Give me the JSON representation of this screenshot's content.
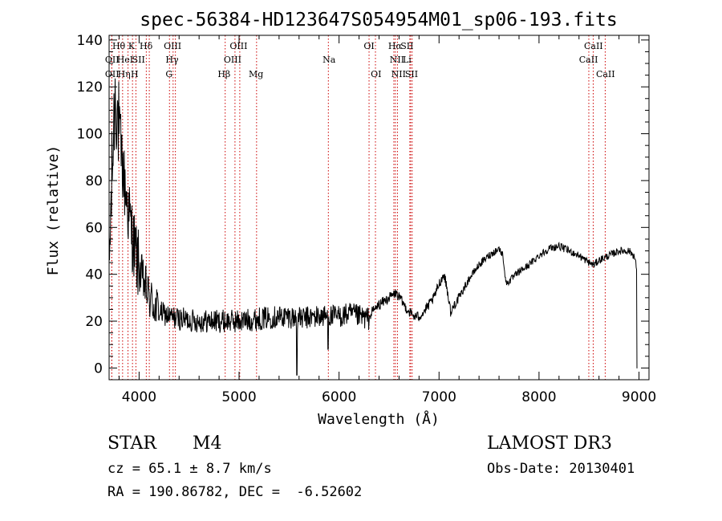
{
  "chart_data": {
    "type": "line",
    "title": "spec-56384-HD123647S054954M01_sp06-193.fits",
    "xlabel": "Wavelength (Å)",
    "ylabel": "Flux (relative)",
    "xlim": [
      3700,
      9100
    ],
    "ylim": [
      -5,
      142
    ],
    "xticks": [
      4000,
      5000,
      6000,
      7000,
      8000,
      9000
    ],
    "yticks": [
      0,
      20,
      40,
      60,
      80,
      100,
      120,
      140
    ],
    "grid": false,
    "line_color": "#000000",
    "marker_color": "#cc0000",
    "continuum": [
      [
        3700,
        40
      ],
      [
        3720,
        70
      ],
      [
        3740,
        95
      ],
      [
        3760,
        118
      ],
      [
        3780,
        110
      ],
      [
        3800,
        100
      ],
      [
        3850,
        80
      ],
      [
        3900,
        65
      ],
      [
        3950,
        52
      ],
      [
        4000,
        42
      ],
      [
        4050,
        36
      ],
      [
        4100,
        30
      ],
      [
        4150,
        27
      ],
      [
        4200,
        24
      ],
      [
        4300,
        22
      ],
      [
        4400,
        21
      ],
      [
        4600,
        20
      ],
      [
        4800,
        20
      ],
      [
        5000,
        20
      ],
      [
        5200,
        21
      ],
      [
        5400,
        22
      ],
      [
        5500,
        22
      ],
      [
        5600,
        21
      ],
      [
        5800,
        22
      ],
      [
        5900,
        22
      ],
      [
        6000,
        22
      ],
      [
        6100,
        23
      ],
      [
        6200,
        22
      ],
      [
        6300,
        21
      ],
      [
        6330,
        24
      ],
      [
        6400,
        27
      ],
      [
        6500,
        30
      ],
      [
        6570,
        32
      ],
      [
        6620,
        29
      ],
      [
        6680,
        25
      ],
      [
        6750,
        22
      ],
      [
        6800,
        22
      ],
      [
        6850,
        24
      ],
      [
        6900,
        27
      ],
      [
        6950,
        30
      ],
      [
        7000,
        36
      ],
      [
        7050,
        40
      ],
      [
        7080,
        34
      ],
      [
        7120,
        23
      ],
      [
        7150,
        27
      ],
      [
        7200,
        30
      ],
      [
        7300,
        38
      ],
      [
        7400,
        44
      ],
      [
        7500,
        48
      ],
      [
        7600,
        51
      ],
      [
        7640,
        48
      ],
      [
        7670,
        36
      ],
      [
        7700,
        37
      ],
      [
        7800,
        41
      ],
      [
        7900,
        44
      ],
      [
        8000,
        48
      ],
      [
        8100,
        51
      ],
      [
        8200,
        52
      ],
      [
        8300,
        50
      ],
      [
        8400,
        48
      ],
      [
        8500,
        45
      ],
      [
        8550,
        44
      ],
      [
        8600,
        46
      ],
      [
        8700,
        48
      ],
      [
        8800,
        50
      ],
      [
        8900,
        50
      ],
      [
        8950,
        48
      ],
      [
        8980,
        42
      ]
    ],
    "line_markers": [
      {
        "label": "Hθ",
        "wavelength": 3798,
        "row": 0,
        "lx": 3797
      },
      {
        "label": "K",
        "wavelength": 3934,
        "row": 0,
        "lx": 3925
      },
      {
        "label": "Hδ",
        "wavelength": 4102,
        "row": 0,
        "lx": 4070
      },
      {
        "label": "OIII",
        "wavelength": 4363,
        "row": 0,
        "lx": 4335
      },
      {
        "label": "OIII",
        "wavelength": 5007,
        "row": 0,
        "lx": 4995
      },
      {
        "label": "OI",
        "wavelength": 6300,
        "row": 0,
        "lx": 6300
      },
      {
        "label": "Hα",
        "wavelength": 6563,
        "row": 0,
        "lx": 6560
      },
      {
        "label": "SII",
        "wavelength": 6716,
        "row": 0,
        "lx": 6680
      },
      {
        "label": "CaII",
        "wavelength": 8542,
        "row": 0,
        "lx": 8545
      },
      {
        "label": "OII",
        "wavelength": 3727,
        "row": 1,
        "lx": 3730
      },
      {
        "label": "HeI",
        "wavelength": 3889,
        "row": 1,
        "lx": 3860
      },
      {
        "label": "SII",
        "wavelength": 4072,
        "row": 1,
        "lx": 3995
      },
      {
        "label": "Hγ",
        "wavelength": 4340,
        "row": 1,
        "lx": 4330
      },
      {
        "label": "OIII",
        "wavelength": 4959,
        "row": 1,
        "lx": 4935
      },
      {
        "label": "Na",
        "wavelength": 5893,
        "row": 1,
        "lx": 5900
      },
      {
        "label": "NII",
        "wavelength": 6584,
        "row": 1,
        "lx": 6580
      },
      {
        "label": "Li",
        "wavelength": 6708,
        "row": 1,
        "lx": 6680
      },
      {
        "label": "CaII",
        "wavelength": 8498,
        "row": 1,
        "lx": 8495
      },
      {
        "label": "OII",
        "wavelength": 3727,
        "row": 2,
        "lx": 3730
      },
      {
        "label": "Hη",
        "wavelength": 3835,
        "row": 2,
        "lx": 3850
      },
      {
        "label": "H",
        "wavelength": 3968,
        "row": 2,
        "lx": 3955
      },
      {
        "label": "G",
        "wavelength": 4304,
        "row": 2,
        "lx": 4300
      },
      {
        "label": "Hβ",
        "wavelength": 4861,
        "row": 2,
        "lx": 4850
      },
      {
        "label": "Mg",
        "wavelength": 5175,
        "row": 2,
        "lx": 5170
      },
      {
        "label": "OI",
        "wavelength": 6364,
        "row": 2,
        "lx": 6370
      },
      {
        "label": "NII",
        "wavelength": 6548,
        "row": 2,
        "lx": 6595
      },
      {
        "label": "SII",
        "wavelength": 6731,
        "row": 2,
        "lx": 6725
      },
      {
        "label": "CaII",
        "wavelength": 8662,
        "row": 2,
        "lx": 8665
      }
    ]
  },
  "info": {
    "object_class": "STAR",
    "subclass": "M4",
    "survey": "LAMOST DR3",
    "cz": "cz = 65.1 ± 8.7 km/s",
    "obs_date": "Obs-Date: 20130401",
    "coords": "RA = 190.86782, DEC =  -6.52602"
  }
}
